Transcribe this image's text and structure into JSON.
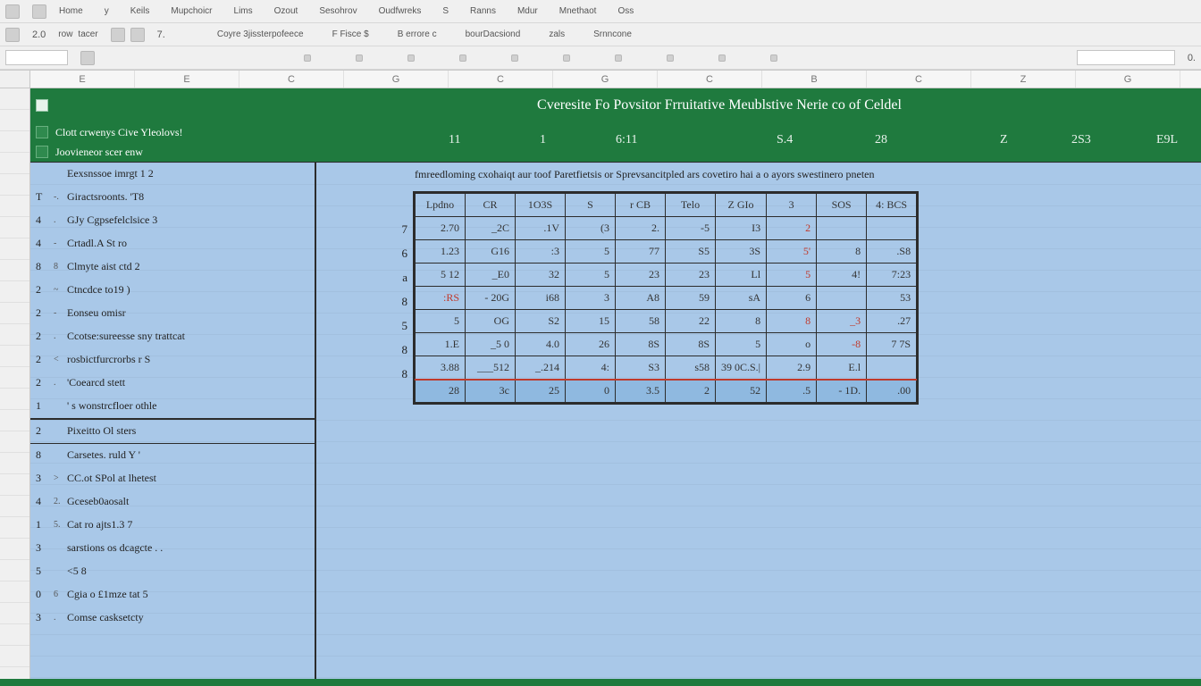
{
  "ribbon": {
    "row1": [
      "Home",
      "y",
      "Keils",
      "Mupchoicr",
      "Lims",
      "Ozout",
      "Sesohrov",
      "Oudfwreks",
      "S",
      "Ranns",
      "Mdur",
      "Mnethaot",
      "Oss"
    ],
    "row2_left_labels": [
      "row",
      "tacer"
    ],
    "row2_nums_left": [
      "2.0"
    ],
    "row2_center": [
      "Coyre 3jissterpofeece",
      "F Fisce  $",
      "B errore  c",
      "bourDacsiond",
      "zals",
      "Srnncone"
    ],
    "row3_nums": [
      "",
      "",
      "",
      "",
      "",
      "",
      "",
      "",
      "",
      "",
      "",
      "0."
    ]
  },
  "col_letters": [
    "E",
    "E",
    "C",
    "G",
    "C",
    "G",
    "C",
    "B",
    "C",
    "Z",
    "G"
  ],
  "row_numbers": [
    "",
    "",
    "",
    "",
    "",
    "",
    "",
    "",
    "",
    "",
    "",
    "",
    "",
    "",
    "",
    "",
    "",
    "",
    "",
    "",
    "",
    "",
    "",
    "",
    ""
  ],
  "title": "Cveresite  Fo Povsitor  Frruitative  Meublstive  Nerie co  of  Celdel",
  "green_items": [
    "Clott crwenys  Cive  Yleolovs!",
    "Joovieneor scer enw"
  ],
  "header_numbers": [
    "11",
    "1",
    "6:11",
    "S.4",
    "28",
    "Z",
    "2S3",
    "E9L"
  ],
  "header_num_positions": [
    468,
    570,
    655,
    835,
    945,
    1085,
    1165,
    1260
  ],
  "subtitle": "fmreedloming  cxohaiqt aur  toof  Paretfietsis or  Sprevsancitpled  ars covetiro  hai a o  ayors swestinero  pneten",
  "left_items_a": [
    {
      "idx": "",
      "mark": "",
      "label": "Eexsnssoe imrgt 1 2"
    },
    {
      "idx": "T",
      "mark": "-.",
      "label": "Giractsroonts. 'T8"
    },
    {
      "idx": "4",
      "mark": ".",
      "label": "GJy Cgpsefelclsice 3"
    },
    {
      "idx": "4",
      "mark": "-",
      "label": "Crtadl.A St            ro"
    },
    {
      "idx": "8",
      "mark": "8",
      "label": "Clmyte aist ctd  2"
    },
    {
      "idx": "2",
      "mark": "~",
      "label": "Ctncdce to19 )"
    },
    {
      "idx": "2",
      "mark": "-",
      "label": "Eonseu omisr"
    },
    {
      "idx": "2",
      "mark": ".",
      "label": "Ccotse:sureesse sny trattcat"
    },
    {
      "idx": "2",
      "mark": "<",
      "label": "rosbictfurcrorbs r S"
    },
    {
      "idx": "2",
      "mark": ".",
      "label": "'Coearcd stett"
    },
    {
      "idx": "1",
      "mark": "",
      "label": "'  s wonstrcfloer othle"
    }
  ],
  "left_items_b": [
    {
      "idx": "2",
      "mark": "",
      "label": "Pixeitto Ol sters"
    },
    {
      "idx": "8",
      "mark": "",
      "label": "Carsetes. ruld Y   '"
    },
    {
      "idx": "3",
      "mark": ">",
      "label": "CC.ot SPol at lhetest"
    },
    {
      "idx": "4",
      "mark": "2.",
      "label": "Gceseb0aosalt"
    },
    {
      "idx": "1",
      "mark": "5.",
      "label": "Cat ro ajts1.3 7"
    },
    {
      "idx": "3",
      "mark": "",
      "label": "sarstions os dcagcte  . ."
    },
    {
      "idx": "5",
      "mark": "",
      "label": "<5 8"
    },
    {
      "idx": "0",
      "mark": "6",
      "label": "Cgia o £1mze tat 5"
    },
    {
      "idx": "3",
      "mark": ".",
      "label": "Comse casksetcty"
    }
  ],
  "table": {
    "index_col": [
      "",
      "7",
      "6",
      "a",
      "8",
      "5",
      "8",
      "8"
    ],
    "headers": [
      "Lpdno",
      "CR",
      "1O3S",
      "S",
      "r CB",
      "Telo",
      "Z  GIo",
      "3",
      "SOS",
      "4: BCS"
    ],
    "rows": [
      [
        "2.70",
        "_2C",
        ".1V",
        "(3",
        "2.",
        "-5",
        "I3",
        "2",
        "",
        ""
      ],
      [
        "1.23",
        "G16",
        ":3",
        "5",
        "77",
        "S5",
        "3S",
        "5'",
        "8",
        ".S8"
      ],
      [
        "5 12",
        "_E0",
        "32",
        "5",
        "23",
        "23",
        "Ll",
        "5",
        "4!",
        "7:23"
      ],
      [
        ":RS",
        "- 20G",
        "i68",
        "3",
        "A8",
        "59",
        "sA",
        "6",
        "",
        "53"
      ],
      [
        "5",
        "OG",
        "S2",
        "15",
        "58",
        "22",
        "8",
        "8",
        "_3",
        ".27"
      ],
      [
        "1.E",
        "_5 0",
        "4.0",
        "26",
        "8S",
        "8S",
        "5",
        "o",
        "-8",
        "7 7S"
      ],
      [
        "3.88",
        "___512",
        "_.214",
        "4:",
        "S3",
        "s58",
        "39 0C.S.|",
        "2.9",
        "E.l",
        ""
      ]
    ],
    "totals": [
      "28",
      "3c",
      "25",
      "0",
      "3.5",
      "2",
      "52",
      ".5",
      "- 1D.",
      ".00"
    ],
    "neg_cells": [
      [
        0,
        7
      ],
      [
        1,
        7
      ],
      [
        2,
        7
      ],
      [
        3,
        0
      ],
      [
        4,
        7
      ],
      [
        4,
        8
      ],
      [
        5,
        8
      ]
    ],
    "colors": {
      "bg": "#a9c8e8",
      "title_bg": "#1f7a3e",
      "border": "#2c2c2c",
      "neg": "#c0392b"
    }
  }
}
